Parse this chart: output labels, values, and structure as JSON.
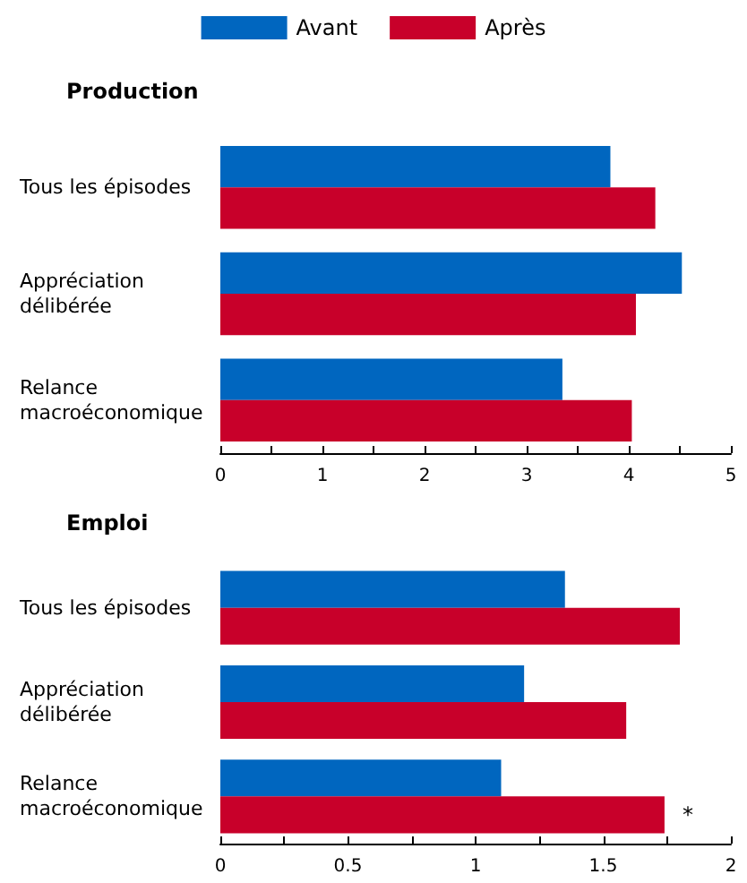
{
  "chart_data": [
    {
      "type": "bar",
      "orientation": "horizontal",
      "title": "Production",
      "categories": [
        "Tous les épisodes",
        "Appréciation\ndélibérée",
        "Relance\nmacroéconomique"
      ],
      "series": [
        {
          "name": "Avant",
          "color": "#0066bf",
          "values": [
            3.82,
            4.52,
            3.35
          ]
        },
        {
          "name": "Après",
          "color": "#c8002a",
          "values": [
            4.26,
            4.07,
            4.03
          ]
        }
      ],
      "xlim": [
        0,
        5
      ],
      "xticks": [
        0,
        {
          "value": 0.5,
          "label": null
        },
        1,
        {
          "value": 1.5,
          "label": null
        },
        2,
        {
          "value": 2.5,
          "label": null
        },
        3,
        {
          "value": 3.5,
          "label": null
        },
        4,
        {
          "value": 4.5,
          "label": null
        },
        5
      ],
      "grid": false,
      "legend": "top"
    },
    {
      "type": "bar",
      "orientation": "horizontal",
      "title": "Emploi",
      "categories": [
        "Tous les épisodes",
        "Appréciation\ndélibérée",
        "Relance\nmacroéconomique"
      ],
      "series": [
        {
          "color": "#0066bf",
          "values": [
            1.35,
            1.19,
            1.1
          ]
        },
        {
          "color": "#c8002a",
          "values": [
            1.8,
            1.59,
            1.74
          ]
        }
      ],
      "xlim": [
        0,
        2
      ],
      "xticks": [
        0,
        {
          "value": 0.25,
          "label": null
        },
        0.5,
        {
          "value": 0.75,
          "label": null
        },
        1,
        {
          "value": 1.25,
          "label": null
        },
        1.5,
        {
          "value": 1.75,
          "label": null
        },
        2
      ],
      "grid": false,
      "legend": false,
      "annotations": [
        {
          "text": "*",
          "x": 1.74,
          "y": "Relance\nmacroéconomique"
        }
      ]
    }
  ]
}
